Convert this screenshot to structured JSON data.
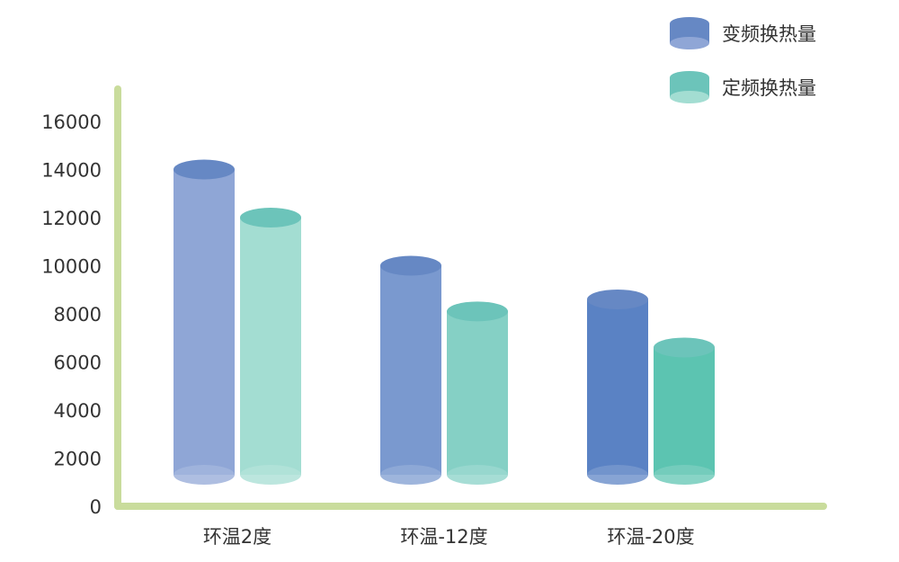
{
  "chart_data": {
    "type": "bar",
    "style": "3d-cylinder",
    "categories": [
      "环温2度",
      "环温-12度",
      "环温-20度"
    ],
    "series": [
      {
        "name": "变频换热量",
        "values": [
          14000,
          10000,
          8600
        ],
        "colors": [
          "#8fa6d6",
          "#7a99cf",
          "#5a82c4"
        ],
        "top_color": "#6688c4"
      },
      {
        "name": "定频换热量",
        "values": [
          12000,
          8100,
          6600
        ],
        "colors": [
          "#a3ddd2",
          "#85d0c5",
          "#5cc4b1"
        ],
        "top_color": "#6cc4ba"
      }
    ],
    "ylim": [
      0,
      16000
    ],
    "yticks": [
      "0",
      "2000",
      "4000",
      "6000",
      "8000",
      "10000",
      "12000",
      "14000",
      "16000"
    ],
    "grid": false,
    "legend": "top-right",
    "axis_color": "#c9dc9c"
  }
}
